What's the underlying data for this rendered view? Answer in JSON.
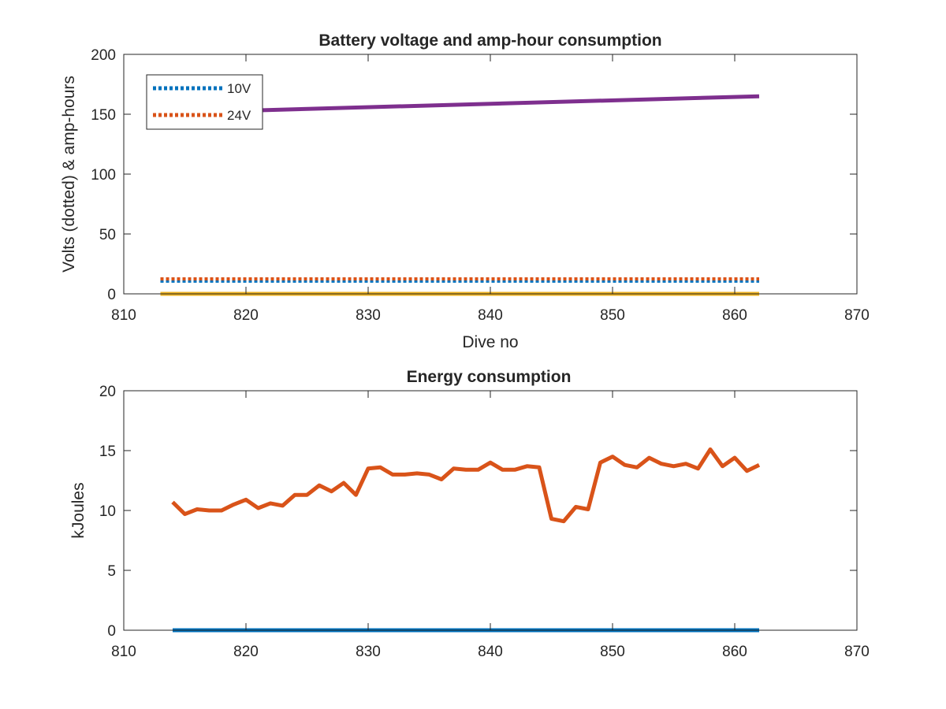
{
  "chart_data": [
    {
      "type": "line",
      "title": "Battery voltage and amp-hour consumption",
      "xlabel": "Dive no",
      "ylabel": "Volts (dotted) & amp-hours",
      "xlim": [
        810,
        870
      ],
      "ylim": [
        0,
        200
      ],
      "xticks": [
        810,
        820,
        830,
        840,
        850,
        860,
        870
      ],
      "yticks": [
        0,
        50,
        100,
        150,
        200
      ],
      "grid": false,
      "legend": "top-left",
      "series": [
        {
          "name": "10V",
          "style": "dotted",
          "color": "#0072BD",
          "x": [
            813,
            820,
            830,
            840,
            850,
            862
          ],
          "y": [
            10.6,
            10.6,
            10.6,
            10.6,
            10.6,
            10.6
          ]
        },
        {
          "name": "24V",
          "style": "dotted",
          "color": "#D95319",
          "x": [
            813,
            820,
            830,
            840,
            850,
            862
          ],
          "y": [
            12.5,
            12.5,
            12.5,
            12.5,
            12.5,
            12.5
          ]
        },
        {
          "style": "solid",
          "color": "#7E2F8E",
          "x": [
            813,
            862
          ],
          "y": [
            151,
            165
          ]
        },
        {
          "style": "solid",
          "color": "#EDB120",
          "x": [
            813,
            862
          ],
          "y": [
            0,
            0
          ]
        }
      ]
    },
    {
      "type": "line",
      "title": "Energy consumption",
      "xlabel": "",
      "ylabel": "kJoules",
      "xlim": [
        810,
        870
      ],
      "ylim": [
        0,
        20
      ],
      "xticks": [
        810,
        820,
        830,
        840,
        850,
        860,
        870
      ],
      "yticks": [
        0,
        5,
        10,
        15,
        20
      ],
      "grid": false,
      "series": [
        {
          "style": "solid",
          "color": "#D95319",
          "x": [
            814,
            815,
            816,
            817,
            818,
            819,
            820,
            821,
            822,
            823,
            824,
            825,
            826,
            827,
            828,
            829,
            830,
            831,
            832,
            833,
            834,
            835,
            836,
            837,
            838,
            839,
            840,
            841,
            842,
            843,
            844,
            845,
            846,
            847,
            848,
            849,
            850,
            851,
            852,
            853,
            854,
            855,
            856,
            857,
            858,
            859,
            860,
            861,
            862
          ],
          "y": [
            10.7,
            9.7,
            10.1,
            10.0,
            10.0,
            10.5,
            10.9,
            10.2,
            10.6,
            10.4,
            11.3,
            11.3,
            12.1,
            11.6,
            12.3,
            11.3,
            13.5,
            13.6,
            13.0,
            13.0,
            13.1,
            13.0,
            12.6,
            13.5,
            13.4,
            13.4,
            14.0,
            13.4,
            13.4,
            13.7,
            13.6,
            9.3,
            9.1,
            10.3,
            10.1,
            14.0,
            14.5,
            13.8,
            13.6,
            14.4,
            13.9,
            13.7,
            13.9,
            13.5,
            15.1,
            13.7,
            14.4,
            13.3,
            13.8
          ]
        },
        {
          "style": "solid",
          "color": "#0072BD",
          "x": [
            814,
            862
          ],
          "y": [
            0,
            0
          ]
        }
      ]
    }
  ]
}
